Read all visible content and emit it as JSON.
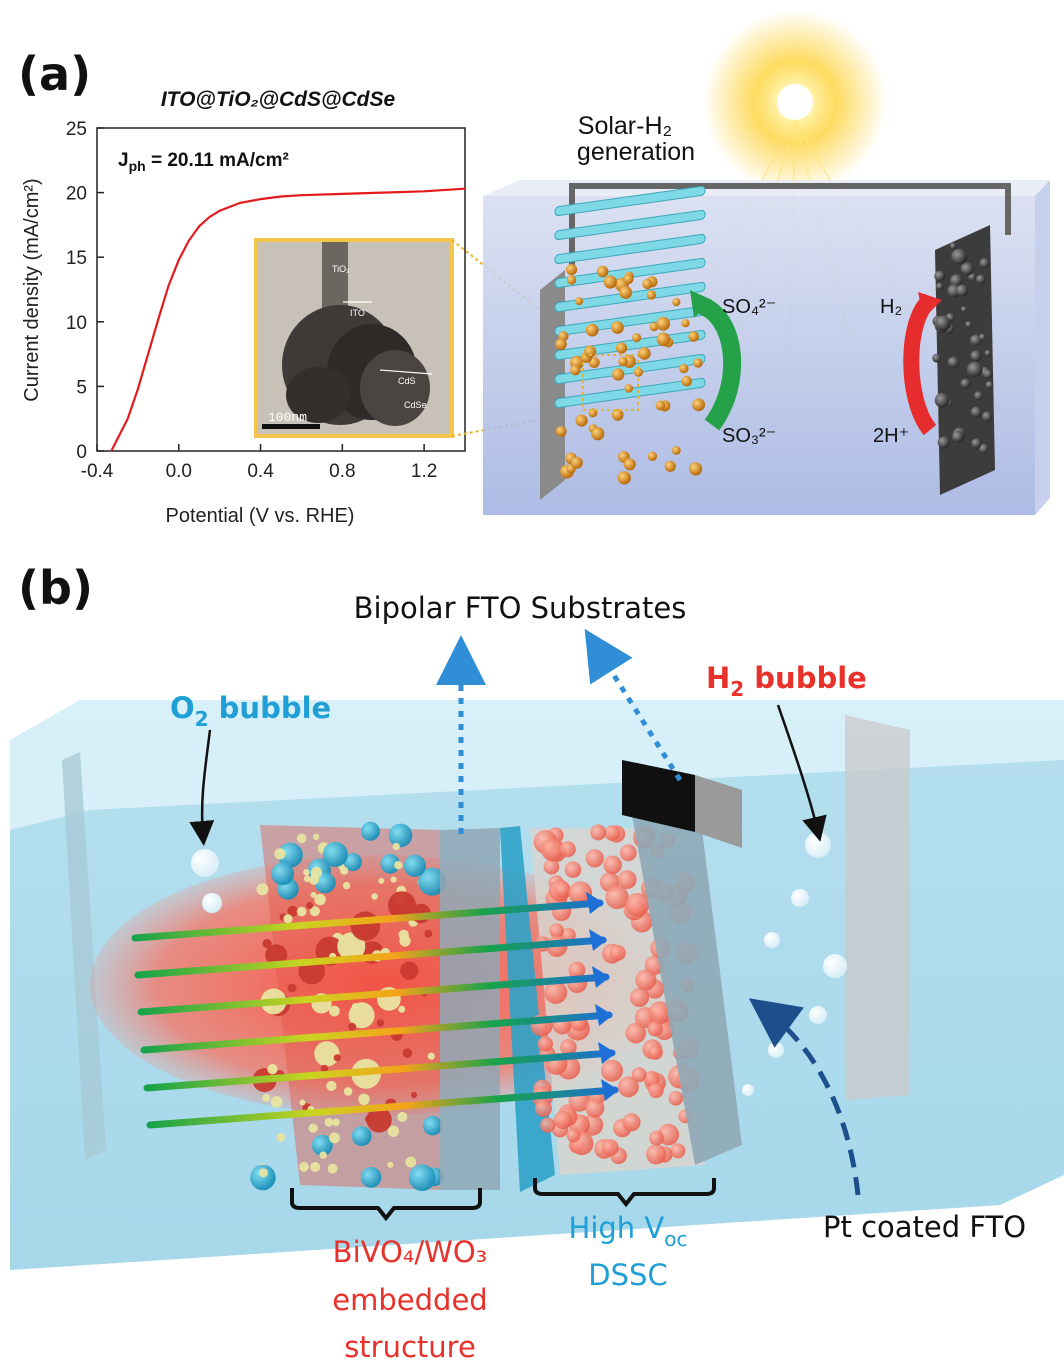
{
  "panel_a": {
    "label": "(a)",
    "chart_title": "ITO@TiO₂@CdS@CdSe",
    "jph_label": "J",
    "jph_sub": "ph",
    "jph_value": " = 20.11 mA/cm²",
    "inset": {
      "scale_bar": "100nm",
      "labels": [
        "TiO₂",
        "ITO",
        "CdS",
        "CdSe"
      ]
    },
    "diagram": {
      "title_line1": "Solar-H₂",
      "title_line2": "generation",
      "so4": "SO₄²⁻",
      "so3": "SO₃²⁻",
      "h2": "H₂",
      "h_plus": "2H⁺"
    }
  },
  "chart_data": {
    "type": "line",
    "title": "ITO@TiO₂@CdS@CdSe",
    "xlabel": "Potential (V vs. RHE)",
    "ylabel": "Current density (mA/cm²)",
    "xlim": [
      -0.4,
      1.4
    ],
    "ylim": [
      0,
      25
    ],
    "xticks": [
      "-0.4",
      "0.0",
      "0.4",
      "0.8",
      "1.2"
    ],
    "yticks": [
      "0",
      "5",
      "10",
      "15",
      "20",
      "25"
    ],
    "series": [
      {
        "color": "#e31a1c",
        "x": [
          -0.33,
          -0.25,
          -0.2,
          -0.15,
          -0.1,
          -0.05,
          0.0,
          0.05,
          0.1,
          0.15,
          0.2,
          0.3,
          0.4,
          0.5,
          0.6,
          0.8,
          1.0,
          1.2,
          1.4
        ],
        "y": [
          0,
          2.5,
          4.8,
          7.5,
          10.2,
          12.8,
          14.8,
          16.3,
          17.4,
          18.1,
          18.6,
          19.2,
          19.5,
          19.7,
          19.8,
          19.9,
          20.0,
          20.1,
          20.3
        ]
      }
    ],
    "grid": false
  },
  "panel_b": {
    "label": "(b)",
    "bipolar": "Bipolar FTO Substrates",
    "o2_main": "O",
    "o2_sub": "2",
    "o2_rest": " bubble",
    "h2_main": "H",
    "h2_sub": "2",
    "h2_rest": " bubble",
    "bivo4_line1": "BiVO₄/WO₃",
    "bivo4_line2": "embedded",
    "bivo4_line3": "structure",
    "voc_line1": "High V",
    "voc_sub": "oc",
    "voc_line2": "DSSC",
    "pt_label": "Pt coated FTO",
    "colors": {
      "red_label": "#e8312a",
      "blue_label": "#1f9fd6",
      "water": "#bfe3f0"
    }
  }
}
